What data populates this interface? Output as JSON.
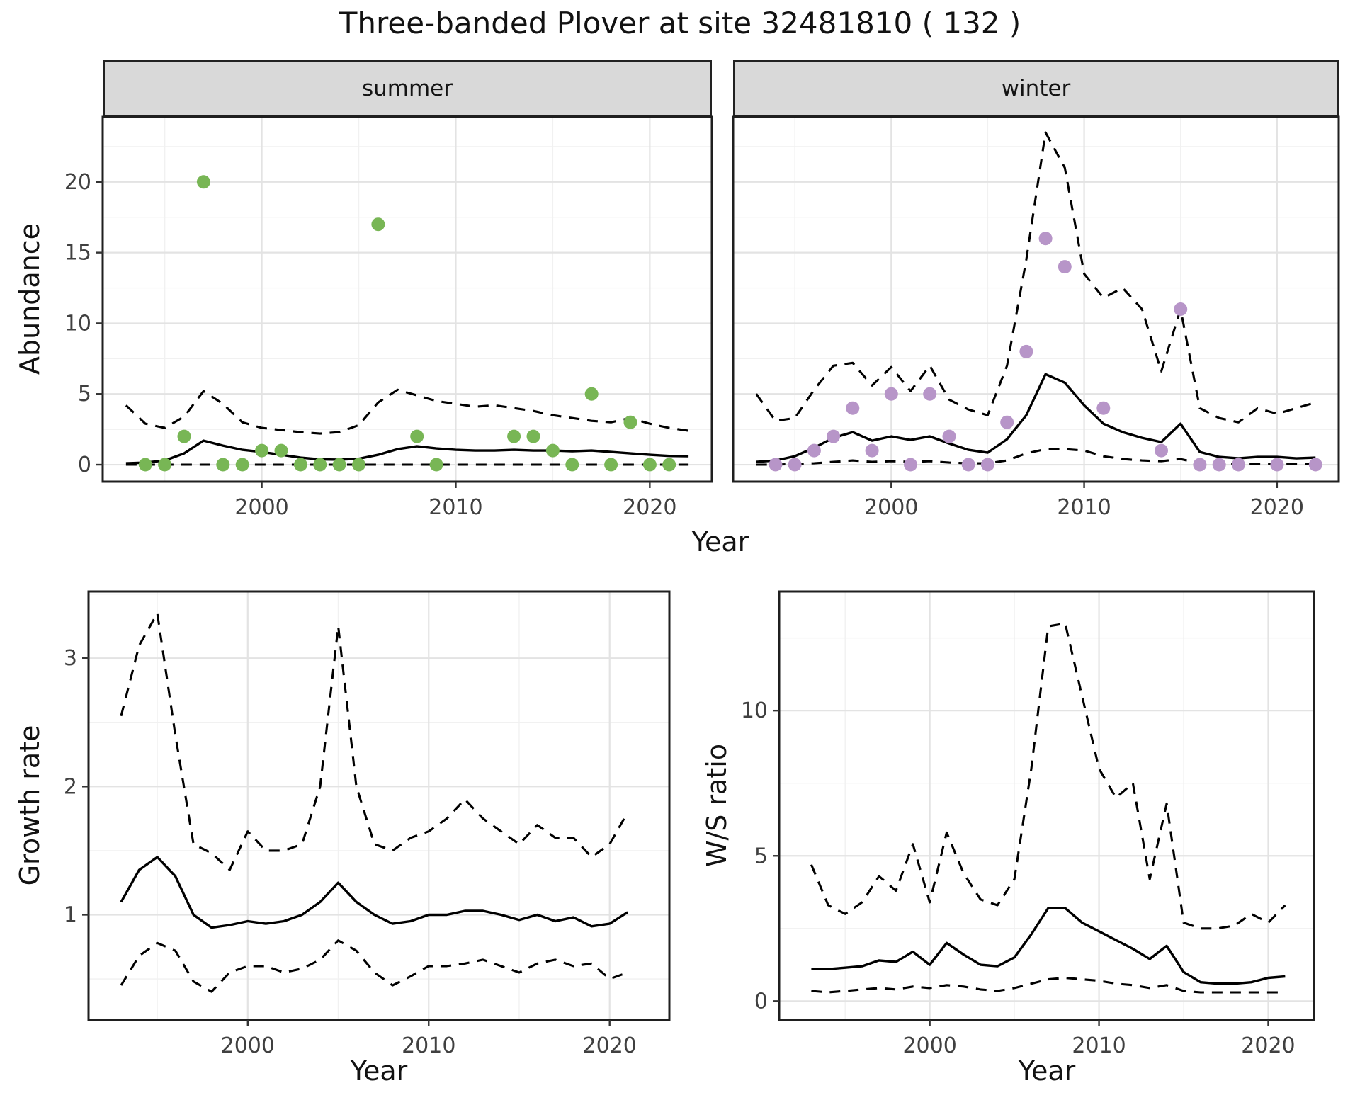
{
  "title": "Three-banded Plover at site 32481810 ( 132 )",
  "colors": {
    "summer_points": "#78b655",
    "winter_points": "#b795c8",
    "line": "#000000",
    "strip_bg": "#d9d9d9",
    "grid_major": "#e3e3e3",
    "grid_minor": "#f1f1f1",
    "panel_border": "#1f1f1f",
    "tick_mark": "#333333",
    "tick_label": "#404040"
  },
  "chart_data": [
    {
      "id": "summer-abundance",
      "type": "scatter",
      "facet": "summer",
      "xlabel": "Year",
      "ylabel": "Abundance",
      "xlim": [
        1991.8,
        2023.2
      ],
      "ylim": [
        -1.2,
        24.6
      ],
      "xticks": [
        2000,
        2010,
        2020
      ],
      "xminor": [
        1995,
        2005,
        2015
      ],
      "yticks": [
        0,
        5,
        10,
        15,
        20
      ],
      "yminor": [
        2.5,
        7.5,
        12.5,
        17.5,
        22.5
      ],
      "series": [
        {
          "name": "upper95",
          "style": "dashed",
          "x": [
            1993,
            1994,
            1995,
            1996,
            1997,
            1998,
            1999,
            2000,
            2001,
            2002,
            2003,
            2004,
            2005,
            2006,
            2007,
            2008,
            2009,
            2010,
            2011,
            2012,
            2013,
            2014,
            2015,
            2016,
            2017,
            2018,
            2019,
            2020,
            2021,
            2022
          ],
          "y": [
            4.2,
            2.9,
            2.6,
            3.4,
            5.2,
            4.3,
            3.0,
            2.6,
            2.45,
            2.3,
            2.2,
            2.3,
            2.8,
            4.4,
            5.3,
            4.9,
            4.5,
            4.3,
            4.1,
            4.2,
            4.0,
            3.8,
            3.5,
            3.3,
            3.1,
            3.0,
            3.3,
            2.9,
            2.6,
            2.4
          ]
        },
        {
          "name": "mean",
          "style": "solid",
          "x": [
            1993,
            1994,
            1995,
            1996,
            1997,
            1998,
            1999,
            2000,
            2001,
            2002,
            2003,
            2004,
            2005,
            2006,
            2007,
            2008,
            2009,
            2010,
            2011,
            2012,
            2013,
            2014,
            2015,
            2016,
            2017,
            2018,
            2019,
            2020,
            2021,
            2022
          ],
          "y": [
            0.1,
            0.15,
            0.3,
            0.8,
            1.7,
            1.35,
            1.05,
            0.9,
            0.7,
            0.5,
            0.38,
            0.36,
            0.42,
            0.7,
            1.1,
            1.3,
            1.15,
            1.05,
            1.0,
            1.0,
            1.05,
            1.0,
            1.0,
            0.95,
            1.0,
            0.9,
            0.8,
            0.7,
            0.62,
            0.6
          ]
        },
        {
          "name": "lower95",
          "style": "dashed",
          "x": [
            1993,
            1994,
            1995,
            1996,
            1997,
            1998,
            1999,
            2000,
            2001,
            2002,
            2003,
            2004,
            2005,
            2006,
            2007,
            2008,
            2009,
            2010,
            2011,
            2012,
            2013,
            2014,
            2015,
            2016,
            2017,
            2018,
            2019,
            2020,
            2021,
            2022
          ],
          "y": [
            0,
            0,
            0,
            0,
            0,
            0,
            0,
            0,
            0,
            0,
            0,
            0,
            0,
            0,
            0,
            0,
            0,
            0,
            0,
            0,
            0,
            0,
            0,
            0,
            0,
            0,
            0,
            0,
            0,
            0
          ]
        }
      ],
      "points": {
        "name": "observed-counts",
        "color": "#78b655",
        "x": [
          1994,
          1995,
          1996,
          1997,
          1998,
          1999,
          2000,
          2001,
          2002,
          2003,
          2004,
          2005,
          2006,
          2008,
          2009,
          2013,
          2014,
          2015,
          2016,
          2017,
          2018,
          2019,
          2020,
          2021
        ],
        "y": [
          0,
          0,
          2,
          20,
          0,
          0,
          1,
          1,
          0,
          0,
          0,
          0,
          17,
          2,
          0,
          2,
          2,
          1,
          0,
          5,
          0,
          3,
          0,
          0
        ]
      }
    },
    {
      "id": "winter-abundance",
      "type": "scatter",
      "facet": "winter",
      "xlabel": "Year",
      "ylabel": "Abundance",
      "xlim": [
        1991.8,
        2023.2
      ],
      "ylim": [
        -1.2,
        24.6
      ],
      "xticks": [
        2000,
        2010,
        2020
      ],
      "xminor": [
        1995,
        2005,
        2015
      ],
      "yticks": [
        0,
        5,
        10,
        15,
        20
      ],
      "yminor": [
        2.5,
        7.5,
        12.5,
        17.5,
        22.5
      ],
      "series": [
        {
          "name": "upper95",
          "style": "dashed",
          "x": [
            1993,
            1994,
            1995,
            1996,
            1997,
            1998,
            1999,
            2000,
            2001,
            2002,
            2003,
            2004,
            2005,
            2006,
            2007,
            2008,
            2009,
            2010,
            2011,
            2012,
            2013,
            2014,
            2015,
            2016,
            2017,
            2018,
            2019,
            2020,
            2021,
            2022
          ],
          "y": [
            5.0,
            3.1,
            3.3,
            5.3,
            7.0,
            7.2,
            5.6,
            6.9,
            5.2,
            7.0,
            4.6,
            3.9,
            3.5,
            7.0,
            14.5,
            23.5,
            21.0,
            13.5,
            11.8,
            12.5,
            11.0,
            6.6,
            11.0,
            4.0,
            3.3,
            3.0,
            4.0,
            3.6,
            4.0,
            4.4
          ]
        },
        {
          "name": "mean",
          "style": "solid",
          "x": [
            1993,
            1994,
            1995,
            1996,
            1997,
            1998,
            1999,
            2000,
            2001,
            2002,
            2003,
            2004,
            2005,
            2006,
            2007,
            2008,
            2009,
            2010,
            2011,
            2012,
            2013,
            2014,
            2015,
            2016,
            2017,
            2018,
            2019,
            2020,
            2021,
            2022
          ],
          "y": [
            0.2,
            0.3,
            0.6,
            1.2,
            1.9,
            2.3,
            1.7,
            2.0,
            1.75,
            2.0,
            1.5,
            1.05,
            0.85,
            1.8,
            3.5,
            6.4,
            5.8,
            4.2,
            2.9,
            2.3,
            1.9,
            1.6,
            2.9,
            0.9,
            0.55,
            0.45,
            0.55,
            0.55,
            0.45,
            0.5
          ]
        },
        {
          "name": "lower95",
          "style": "dashed",
          "x": [
            1993,
            1994,
            1995,
            1996,
            1997,
            1998,
            1999,
            2000,
            2001,
            2002,
            2003,
            2004,
            2005,
            2006,
            2007,
            2008,
            2009,
            2010,
            2011,
            2012,
            2013,
            2014,
            2015,
            2016,
            2017,
            2018,
            2019,
            2020,
            2021,
            2022
          ],
          "y": [
            0,
            0,
            0.05,
            0.1,
            0.2,
            0.3,
            0.2,
            0.25,
            0.2,
            0.25,
            0.15,
            0.1,
            0.1,
            0.3,
            0.8,
            1.1,
            1.1,
            1.0,
            0.6,
            0.4,
            0.3,
            0.25,
            0.4,
            0.1,
            0.05,
            0.05,
            0.05,
            0.05,
            0.05,
            0.05
          ]
        }
      ],
      "points": {
        "name": "observed-counts",
        "color": "#b795c8",
        "x": [
          1994,
          1995,
          1996,
          1997,
          1998,
          1999,
          2000,
          2001,
          2002,
          2003,
          2004,
          2005,
          2006,
          2007,
          2008,
          2009,
          2011,
          2014,
          2015,
          2016,
          2017,
          2018,
          2020,
          2022
        ],
        "y": [
          0,
          0,
          1,
          2,
          4,
          1,
          5,
          0,
          5,
          2,
          0,
          0,
          3,
          8,
          16,
          14,
          4,
          1,
          11,
          0,
          0,
          0,
          0,
          0
        ]
      }
    },
    {
      "id": "growth-rate",
      "type": "line",
      "facet": null,
      "xlabel": "Year",
      "ylabel": "Growth rate",
      "xlim": [
        1991.2,
        2023.3
      ],
      "ylim": [
        0.18,
        3.52
      ],
      "xticks": [
        2000,
        2010,
        2020
      ],
      "xminor": [
        1995,
        2005,
        2015
      ],
      "yticks": [
        1,
        2,
        3
      ],
      "yminor": [
        0.5,
        1.5,
        2.5,
        3.5
      ],
      "series": [
        {
          "name": "upper95",
          "style": "dashed",
          "x": [
            1993,
            1994,
            1995,
            1996,
            1997,
            1998,
            1999,
            2000,
            2001,
            2002,
            2003,
            2004,
            2005,
            2006,
            2007,
            2008,
            2009,
            2010,
            2011,
            2012,
            2013,
            2014,
            2015,
            2016,
            2017,
            2018,
            2019,
            2020,
            2021
          ],
          "y": [
            2.55,
            3.1,
            3.35,
            2.4,
            1.55,
            1.48,
            1.35,
            1.65,
            1.5,
            1.5,
            1.55,
            2.0,
            3.25,
            2.0,
            1.55,
            1.5,
            1.6,
            1.65,
            1.75,
            1.9,
            1.75,
            1.65,
            1.55,
            1.7,
            1.6,
            1.6,
            1.45,
            1.55,
            1.8
          ]
        },
        {
          "name": "mean",
          "style": "solid",
          "x": [
            1993,
            1994,
            1995,
            1996,
            1997,
            1998,
            1999,
            2000,
            2001,
            2002,
            2003,
            2004,
            2005,
            2006,
            2007,
            2008,
            2009,
            2010,
            2011,
            2012,
            2013,
            2014,
            2015,
            2016,
            2017,
            2018,
            2019,
            2020,
            2021
          ],
          "y": [
            1.1,
            1.35,
            1.45,
            1.3,
            1.0,
            0.9,
            0.92,
            0.95,
            0.93,
            0.95,
            1.0,
            1.1,
            1.25,
            1.1,
            1.0,
            0.93,
            0.95,
            1.0,
            1.0,
            1.03,
            1.03,
            1.0,
            0.96,
            1.0,
            0.95,
            0.98,
            0.91,
            0.93,
            1.02
          ]
        },
        {
          "name": "lower95",
          "style": "dashed",
          "x": [
            1993,
            1994,
            1995,
            1996,
            1997,
            1998,
            1999,
            2000,
            2001,
            2002,
            2003,
            2004,
            2005,
            2006,
            2007,
            2008,
            2009,
            2010,
            2011,
            2012,
            2013,
            2014,
            2015,
            2016,
            2017,
            2018,
            2019,
            2020,
            2021
          ],
          "y": [
            0.45,
            0.68,
            0.78,
            0.72,
            0.48,
            0.4,
            0.55,
            0.6,
            0.6,
            0.55,
            0.58,
            0.65,
            0.8,
            0.72,
            0.55,
            0.45,
            0.52,
            0.6,
            0.6,
            0.62,
            0.65,
            0.6,
            0.55,
            0.62,
            0.65,
            0.6,
            0.62,
            0.5,
            0.55
          ]
        }
      ],
      "points": null
    },
    {
      "id": "ws-ratio",
      "type": "line",
      "facet": null,
      "xlabel": "Year",
      "ylabel": "W/S ratio",
      "xlim": [
        1991.1,
        2022.7
      ],
      "ylim": [
        -0.65,
        14.1
      ],
      "xticks": [
        2000,
        2010,
        2020
      ],
      "xminor": [
        1995,
        2005,
        2015
      ],
      "yticks": [
        0,
        5,
        10
      ],
      "yminor": [
        2.5,
        7.5,
        12.5
      ],
      "series": [
        {
          "name": "upper95",
          "style": "dashed",
          "x": [
            1993,
            1994,
            1995,
            1996,
            1997,
            1998,
            1999,
            2000,
            2001,
            2002,
            2003,
            2004,
            2005,
            2006,
            2007,
            2008,
            2009,
            2010,
            2011,
            2012,
            2013,
            2014,
            2015,
            2016,
            2017,
            2018,
            2019,
            2020,
            2021
          ],
          "y": [
            4.7,
            3.3,
            3.0,
            3.4,
            4.3,
            3.8,
            5.4,
            3.4,
            5.8,
            4.4,
            3.5,
            3.3,
            4.2,
            8.0,
            12.9,
            13.0,
            10.5,
            8.0,
            7.0,
            7.5,
            4.2,
            6.8,
            2.7,
            2.5,
            2.5,
            2.6,
            3.0,
            2.7,
            3.3
          ]
        },
        {
          "name": "mean",
          "style": "solid",
          "x": [
            1993,
            1994,
            1995,
            1996,
            1997,
            1998,
            1999,
            2000,
            2001,
            2002,
            2003,
            2004,
            2005,
            2006,
            2007,
            2008,
            2009,
            2010,
            2011,
            2012,
            2013,
            2014,
            2015,
            2016,
            2017,
            2018,
            2019,
            2020,
            2021
          ],
          "y": [
            1.1,
            1.1,
            1.15,
            1.2,
            1.4,
            1.35,
            1.7,
            1.25,
            2.0,
            1.6,
            1.25,
            1.2,
            1.5,
            2.3,
            3.2,
            3.2,
            2.7,
            2.4,
            2.1,
            1.8,
            1.45,
            1.9,
            1.0,
            0.65,
            0.6,
            0.6,
            0.65,
            0.8,
            0.85
          ]
        },
        {
          "name": "lower95",
          "style": "dashed",
          "x": [
            1993,
            1994,
            1995,
            1996,
            1997,
            1998,
            1999,
            2000,
            2001,
            2002,
            2003,
            2004,
            2005,
            2006,
            2007,
            2008,
            2009,
            2010,
            2011,
            2012,
            2013,
            2014,
            2015,
            2016,
            2017,
            2018,
            2019,
            2020,
            2021
          ],
          "y": [
            0.35,
            0.3,
            0.35,
            0.4,
            0.45,
            0.4,
            0.5,
            0.45,
            0.55,
            0.5,
            0.4,
            0.35,
            0.45,
            0.6,
            0.75,
            0.8,
            0.75,
            0.7,
            0.6,
            0.55,
            0.45,
            0.55,
            0.35,
            0.3,
            0.3,
            0.3,
            0.3,
            0.3,
            0.3
          ]
        }
      ],
      "points": null
    }
  ]
}
